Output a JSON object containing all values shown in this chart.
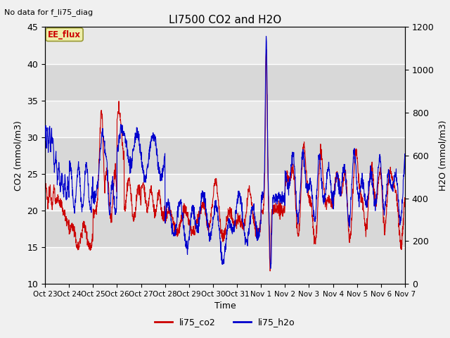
{
  "title": "LI7500 CO2 and H2O",
  "top_left_text": "No data for f_li75_diag",
  "xlabel": "Time",
  "ylabel_left": "CO2 (mmol/m3)",
  "ylabel_right": "H2O (mmol/m3)",
  "ylim_left": [
    10,
    45
  ],
  "ylim_right": [
    0,
    1200
  ],
  "yticks_left": [
    10,
    15,
    20,
    25,
    30,
    35,
    40,
    45
  ],
  "yticks_right": [
    0,
    200,
    400,
    600,
    800,
    1000,
    1200
  ],
  "x_tick_labels": [
    "Oct 23",
    "Oct 24",
    "Oct 25",
    "Oct 26",
    "Oct 27",
    "Oct 28",
    "Oct 29",
    "Oct 30",
    "Oct 31",
    "Nov 1",
    "Nov 2",
    "Nov 3",
    "Nov 4",
    "Nov 5",
    "Nov 6",
    "Nov 7"
  ],
  "legend_labels": [
    "li75_co2",
    "li75_h2o"
  ],
  "legend_colors": [
    "#cc0000",
    "#0000cc"
  ],
  "color_co2": "#cc0000",
  "color_h2o": "#0000cc",
  "ee_flux_box_facecolor": "#eeeeaa",
  "ee_flux_box_edgecolor": "#999933",
  "ee_flux_text": "EE_flux",
  "bg_color": "#f0f0f0",
  "plot_bg_color_light": "#e8e8e8",
  "plot_bg_color_dark": "#d8d8d8",
  "grid_color": "#ffffff",
  "n_points": 2000
}
